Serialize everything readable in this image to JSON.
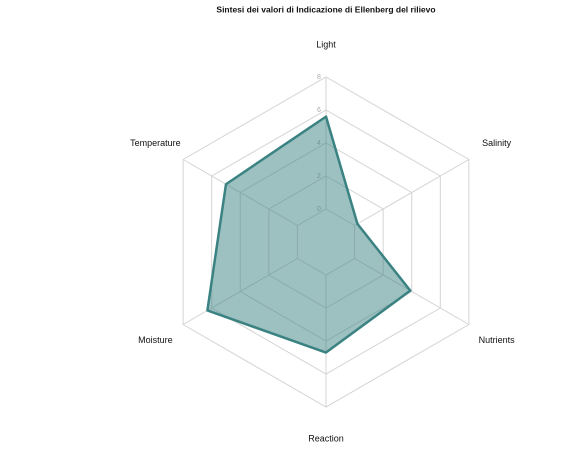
{
  "chart_data": {
    "type": "radar",
    "title": "Sintesi dei valori di Indicazione di Ellenberg del rilievo",
    "categories": [
      "Light",
      "Salinity",
      "Nutrients",
      "Reaction",
      "Moisture",
      "Temperature"
    ],
    "series": [
      {
        "color": "#3b8282",
        "values": [
          5.6,
          0.2,
          3.9,
          4.7,
          6.3,
          5.0
        ]
      }
    ],
    "rlim": [
      0,
      8
    ],
    "rticks": [
      0,
      2,
      4,
      6,
      8
    ],
    "grid": true
  }
}
